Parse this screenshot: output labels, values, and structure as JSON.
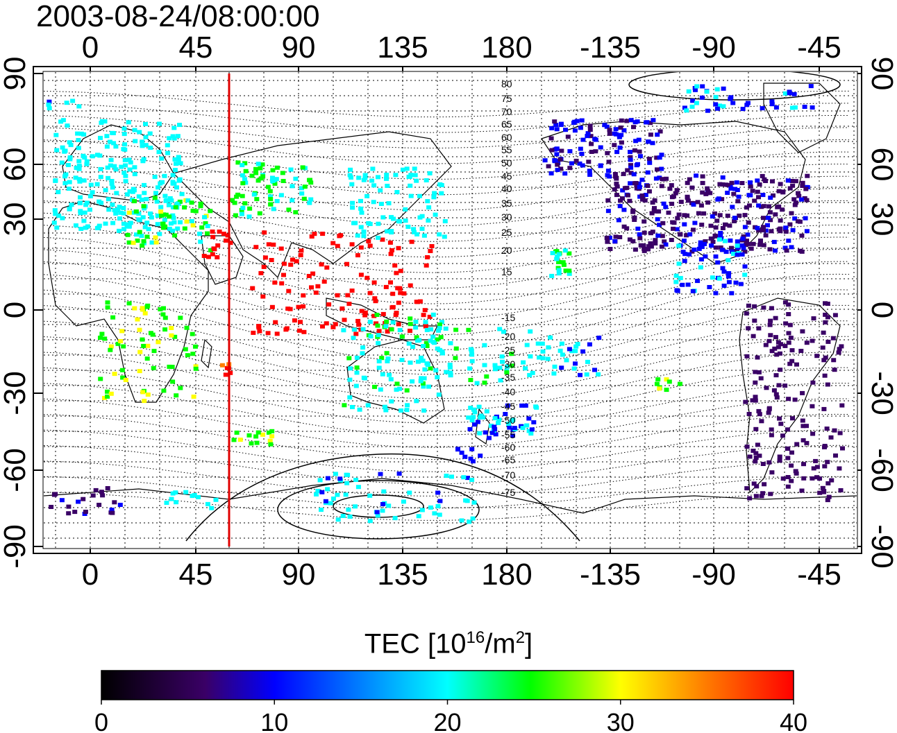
{
  "title": "2003-08-24/08:00:00",
  "map": {
    "lon_ticks_top": [
      "0",
      "45",
      "90",
      "135",
      "180",
      "-135",
      "-90",
      "-45"
    ],
    "lon_ticks_bottom": [
      "0",
      "45",
      "90",
      "135",
      "180",
      "-135",
      "-90",
      "-45"
    ],
    "lat_ticks_left": [
      "90",
      "60",
      "30",
      "0",
      "-30",
      "-60",
      "-90"
    ],
    "lat_ticks_right": [
      "90",
      "60",
      "30",
      "0",
      "-30",
      "-60",
      "-90"
    ],
    "contour_labels": [
      "80",
      "75",
      "70",
      "65",
      "60",
      "55",
      "50",
      "45",
      "40",
      "35",
      "30",
      "25",
      "20",
      "15",
      "-15",
      "-20",
      "-25",
      "-30",
      "-35",
      "-40",
      "-45",
      "-50",
      "-55",
      "-60",
      "-65",
      "-70",
      "-75"
    ],
    "meridian_marker_color": "#e00000",
    "grid_style": "dotted"
  },
  "colorbar": {
    "title_text": "TEC  [10",
    "title_exp1": "16",
    "title_mid": "/m",
    "title_exp2": "2",
    "title_end": "]",
    "min": 0,
    "max": 40,
    "tick_labels": [
      "0",
      "10",
      "20",
      "30",
      "40"
    ],
    "colors": [
      "#000000",
      "#3a0066",
      "#0000ff",
      "#00ffff",
      "#00ff00",
      "#ffff00",
      "#ff7f00",
      "#ff0000"
    ]
  }
}
